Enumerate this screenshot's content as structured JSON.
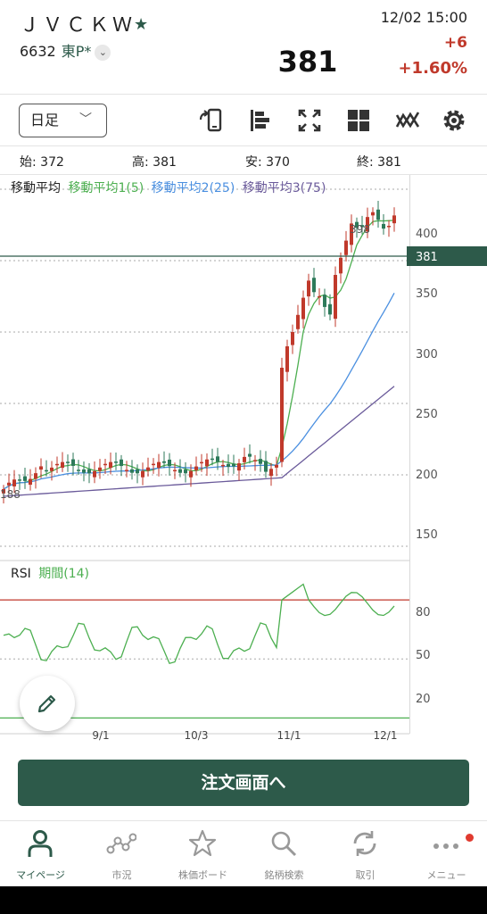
{
  "header": {
    "stock_name": "ＪＶＣＫＷ",
    "code": "6632",
    "market": "東P*",
    "price": "381",
    "datetime": "12/02 15:00",
    "change": "+6",
    "change_pct": "+1.60%",
    "up_color": "#c0392b"
  },
  "toolbar": {
    "period": "日足",
    "icons": [
      "rotate-screen-icon",
      "bar-align-icon",
      "fullscreen-icon",
      "grid-icon",
      "indicator-icon",
      "gear-icon"
    ]
  },
  "ohlc": {
    "open_label": "始:",
    "open": "372",
    "high_label": "高:",
    "high": "381",
    "low_label": "安:",
    "low": "370",
    "close_label": "終:",
    "close": "381"
  },
  "legend": {
    "title": "移動平均",
    "ma1": "移動平均1(5)",
    "ma2": "移動平均2(25)",
    "ma3": "移動平均3(75)",
    "ma1_color": "#4caf50",
    "ma2_color": "#4a8fe0",
    "ma3_color": "#6a5a9a"
  },
  "price_axis": {
    "ticks": [
      "400",
      "350",
      "300",
      "250",
      "200",
      "150"
    ],
    "current": "381",
    "high_label": "398",
    "low_label": "188"
  },
  "rsi": {
    "title": "RSI",
    "period": "期間(14)",
    "ticks": [
      "80",
      "50",
      "20"
    ]
  },
  "x_axis": {
    "ticks": [
      "9/1",
      "10/3",
      "11/1",
      "12/1"
    ]
  },
  "chart_data": {
    "type": "candlestick",
    "price_ylim": [
      140,
      410
    ],
    "current_price": 381,
    "rsi_ylim": [
      12,
      100
    ],
    "rsi_levels": [
      80,
      50,
      20
    ],
    "x_ticks": [
      "9/1",
      "10/3",
      "11/1",
      "12/1"
    ],
    "series": [
      {
        "name": "移動平均1(5)",
        "color": "#4caf50"
      },
      {
        "name": "移動平均2(25)",
        "color": "#4a8fe0"
      },
      {
        "name": "移動平均3(75)",
        "color": "#6a5a9a"
      },
      {
        "name": "期間(14)",
        "color": "#4caf50"
      }
    ]
  },
  "order_button": "注文画面へ",
  "nav": [
    {
      "label": "マイページ",
      "icon": "person-icon"
    },
    {
      "label": "市況",
      "icon": "market-icon"
    },
    {
      "label": "株価ボード",
      "icon": "star-icon"
    },
    {
      "label": "銘柄検索",
      "icon": "search-icon"
    },
    {
      "label": "取引",
      "icon": "refresh-icon"
    },
    {
      "label": "メニュー",
      "icon": "more-icon"
    }
  ]
}
